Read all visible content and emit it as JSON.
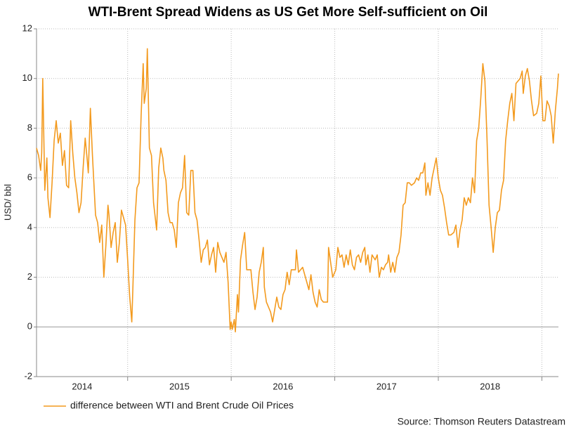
{
  "chart_data": {
    "type": "line",
    "title": "WTI-Brent Spread Widens as US Get More Self-sufficient on Oil",
    "y_label": "USD/ bbl",
    "source": "Source: Thomson Reuters Datastream",
    "xlim": [
      2014.12,
      2019.16
    ],
    "xticks": [
      2015,
      2016,
      2017,
      2018,
      2019
    ],
    "year_labels": [
      "2014",
      "2015",
      "2016",
      "2017",
      "2018"
    ],
    "ylim": [
      -2,
      12
    ],
    "yticks": [
      -2,
      0,
      2,
      4,
      6,
      8,
      10,
      12
    ],
    "grid": true,
    "x": [
      2014.12,
      2014.14,
      2014.16,
      2014.17,
      2014.18,
      2014.2,
      2014.22,
      2014.23,
      2014.25,
      2014.27,
      2014.29,
      2014.31,
      2014.33,
      2014.35,
      2014.37,
      2014.39,
      2014.41,
      2014.43,
      2014.45,
      2014.47,
      2014.49,
      2014.51,
      2014.53,
      2014.55,
      2014.57,
      2014.59,
      2014.61,
      2014.62,
      2014.64,
      2014.66,
      2014.69,
      2014.71,
      2014.73,
      2014.75,
      2014.77,
      2014.79,
      2014.81,
      2014.82,
      2014.84,
      2014.86,
      2014.88,
      2014.9,
      2014.92,
      2014.94,
      2014.96,
      2014.98,
      2015.0,
      2015.02,
      2015.04,
      2015.05,
      2015.07,
      2015.09,
      2015.11,
      2015.13,
      2015.15,
      2015.16,
      2015.18,
      2015.19,
      2015.21,
      2015.23,
      2015.25,
      2015.28,
      2015.3,
      2015.32,
      2015.34,
      2015.35,
      2015.37,
      2015.39,
      2015.41,
      2015.43,
      2015.45,
      2015.47,
      2015.49,
      2015.51,
      2015.53,
      2015.55,
      2015.57,
      2015.59,
      2015.61,
      2015.63,
      2015.65,
      2015.67,
      2015.69,
      2015.71,
      2015.73,
      2015.75,
      2015.77,
      2015.79,
      2015.81,
      2015.83,
      2015.85,
      2015.87,
      2015.89,
      2015.91,
      2015.93,
      2015.95,
      2015.97,
      2015.99,
      2016.0,
      2016.01,
      2016.03,
      2016.04,
      2016.06,
      2016.07,
      2016.09,
      2016.11,
      2016.13,
      2016.15,
      2016.17,
      2016.19,
      2016.21,
      2016.23,
      2016.25,
      2016.27,
      2016.29,
      2016.31,
      2016.32,
      2016.34,
      2016.36,
      2016.38,
      2016.4,
      2016.42,
      2016.44,
      2016.46,
      2016.48,
      2016.5,
      2016.52,
      2016.54,
      2016.56,
      2016.58,
      2016.6,
      2016.62,
      2016.63,
      2016.65,
      2016.67,
      2016.69,
      2016.71,
      2016.73,
      2016.75,
      2016.77,
      2016.79,
      2016.81,
      2016.83,
      2016.85,
      2016.87,
      2016.89,
      2016.91,
      2016.93,
      2016.94,
      2016.96,
      2016.98,
      2017.01,
      2017.03,
      2017.05,
      2017.07,
      2017.09,
      2017.11,
      2017.13,
      2017.15,
      2017.17,
      2017.19,
      2017.21,
      2017.23,
      2017.25,
      2017.27,
      2017.29,
      2017.3,
      2017.32,
      2017.34,
      2017.36,
      2017.39,
      2017.41,
      2017.43,
      2017.45,
      2017.47,
      2017.49,
      2017.51,
      2017.52,
      2017.54,
      2017.56,
      2017.58,
      2017.6,
      2017.62,
      2017.64,
      2017.66,
      2017.68,
      2017.7,
      2017.72,
      2017.74,
      2017.77,
      2017.79,
      2017.81,
      2017.83,
      2017.85,
      2017.87,
      2017.88,
      2017.9,
      2017.92,
      2017.94,
      2017.96,
      2017.98,
      2018.0,
      2018.02,
      2018.04,
      2018.06,
      2018.08,
      2018.1,
      2018.12,
      2018.15,
      2018.17,
      2018.19,
      2018.21,
      2018.23,
      2018.25,
      2018.27,
      2018.29,
      2018.31,
      2018.33,
      2018.35,
      2018.37,
      2018.39,
      2018.41,
      2018.43,
      2018.45,
      2018.47,
      2018.49,
      2018.51,
      2018.53,
      2018.55,
      2018.57,
      2018.59,
      2018.61,
      2018.63,
      2018.65,
      2018.67,
      2018.69,
      2018.71,
      2018.73,
      2018.75,
      2018.77,
      2018.79,
      2018.81,
      2018.82,
      2018.84,
      2018.86,
      2018.88,
      2018.9,
      2018.92,
      2018.95,
      2018.97,
      2018.99,
      2019.01,
      2019.03,
      2019.05,
      2019.07,
      2019.09,
      2019.11,
      2019.13,
      2019.15,
      2019.16
    ],
    "series": [
      {
        "name": "difference between WTI and Brent Crude Oil Prices",
        "color": "#f39a1e",
        "values": [
          7.2,
          6.9,
          6.3,
          7.0,
          10.0,
          5.5,
          6.8,
          5.2,
          4.4,
          5.8,
          7.5,
          8.3,
          7.4,
          7.8,
          6.5,
          7.1,
          5.7,
          5.6,
          8.3,
          7.0,
          6.0,
          5.4,
          4.6,
          5.0,
          6.4,
          7.6,
          6.7,
          6.2,
          8.8,
          6.9,
          4.5,
          4.2,
          3.4,
          4.1,
          2.0,
          3.3,
          4.9,
          4.5,
          3.2,
          3.8,
          4.2,
          2.6,
          3.4,
          4.7,
          4.4,
          4.1,
          2.7,
          1.2,
          0.2,
          1.5,
          4.3,
          5.6,
          5.8,
          8.5,
          10.6,
          9.0,
          9.6,
          11.2,
          7.2,
          6.9,
          5.0,
          3.9,
          6.4,
          7.2,
          6.8,
          6.3,
          5.9,
          4.6,
          4.2,
          4.2,
          3.9,
          3.2,
          5.0,
          5.4,
          5.6,
          6.9,
          4.6,
          4.5,
          6.3,
          6.3,
          4.6,
          4.3,
          3.5,
          2.6,
          3.1,
          3.2,
          3.5,
          2.5,
          2.9,
          3.2,
          2.2,
          3.4,
          3.0,
          2.8,
          2.6,
          3.0,
          1.8,
          -0.1,
          0.2,
          -0.1,
          0.3,
          -0.2,
          1.3,
          0.6,
          2.7,
          3.3,
          3.8,
          2.3,
          2.3,
          2.3,
          1.4,
          0.7,
          1.2,
          2.2,
          2.6,
          3.2,
          1.6,
          1.0,
          0.8,
          0.6,
          0.2,
          0.7,
          1.2,
          0.8,
          0.7,
          1.3,
          1.5,
          2.2,
          1.7,
          2.3,
          2.3,
          2.3,
          3.1,
          2.2,
          2.3,
          2.4,
          2.1,
          1.8,
          1.5,
          2.1,
          1.4,
          1.0,
          0.8,
          1.5,
          1.1,
          1.0,
          1.0,
          1.0,
          3.2,
          2.6,
          2.0,
          2.3,
          3.2,
          2.8,
          2.9,
          2.4,
          2.9,
          2.5,
          3.1,
          2.5,
          2.3,
          2.8,
          2.9,
          2.6,
          3.0,
          3.2,
          2.5,
          2.9,
          2.2,
          2.9,
          2.7,
          2.9,
          2.0,
          2.4,
          2.3,
          2.5,
          2.6,
          2.9,
          2.2,
          2.6,
          2.2,
          2.8,
          3.0,
          3.7,
          4.9,
          5.0,
          5.8,
          5.8,
          5.7,
          5.8,
          6.0,
          5.9,
          6.2,
          6.2,
          6.6,
          5.3,
          5.8,
          5.3,
          6.0,
          6.4,
          6.8,
          6.0,
          5.5,
          5.3,
          4.8,
          4.2,
          3.7,
          3.7,
          3.8,
          4.1,
          3.2,
          3.9,
          4.3,
          5.2,
          4.9,
          5.2,
          5.0,
          6.0,
          5.4,
          7.5,
          8.0,
          9.2,
          10.6,
          9.9,
          7.6,
          4.9,
          4.0,
          3.0,
          4.0,
          4.6,
          4.7,
          5.5,
          5.9,
          7.5,
          8.3,
          9.0,
          9.4,
          8.3,
          9.8,
          9.9,
          10.0,
          10.3,
          9.4,
          10.1,
          10.4,
          9.9,
          9.1,
          8.5,
          8.6,
          9.0,
          10.1,
          8.3,
          8.3,
          9.1,
          8.9,
          8.5,
          7.4,
          8.7,
          9.6,
          10.2
        ]
      }
    ]
  }
}
